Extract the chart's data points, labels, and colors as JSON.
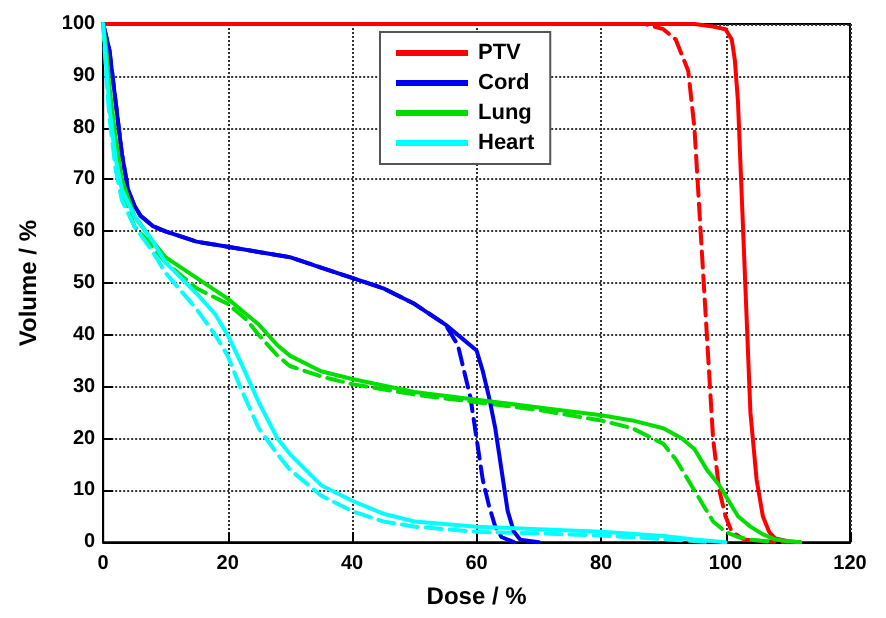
{
  "chart_data": {
    "type": "line",
    "xlabel": "Dose / %",
    "ylabel": "Volume / %",
    "xlim": [
      0,
      120
    ],
    "xticks": [
      0,
      20,
      40,
      60,
      80,
      100,
      120
    ],
    "ylim": [
      0,
      100
    ],
    "yticks": [
      0,
      10,
      20,
      30,
      40,
      50,
      60,
      70,
      80,
      90,
      100
    ],
    "grid": true,
    "legend": "top",
    "marker": "none",
    "series": [
      {
        "name": "PTV",
        "color": "#ff0000",
        "line_style": "solid",
        "x": [
          0,
          85,
          95,
          98,
          100,
          101,
          101.5,
          102,
          102.5,
          103,
          103.5,
          104,
          105,
          106,
          107,
          108,
          110,
          112
        ],
        "values": [
          100,
          100,
          100,
          99.5,
          99,
          97,
          93,
          85,
          70,
          55,
          40,
          25,
          12,
          5,
          2,
          0.7,
          0.2,
          0
        ]
      },
      {
        "name": "Cord",
        "color": "#0000ee",
        "line_style": "solid",
        "x": [
          0,
          1,
          2,
          3,
          4,
          5,
          6,
          8,
          10,
          15,
          20,
          25,
          30,
          35,
          40,
          45,
          50,
          55,
          58,
          60,
          61,
          62,
          63,
          64,
          65,
          66,
          67,
          70
        ],
        "values": [
          100,
          95,
          85,
          75,
          68,
          65,
          63,
          61,
          60,
          58,
          57,
          56,
          55,
          53,
          51,
          49,
          46,
          42,
          39,
          37,
          33,
          28,
          22,
          14,
          6,
          2,
          0.5,
          0
        ]
      },
      {
        "name": "Lung",
        "color": "#00dd00",
        "line_style": "solid",
        "x": [
          0,
          0.5,
          1,
          2,
          3,
          5,
          8,
          10,
          15,
          20,
          23,
          25,
          28,
          30,
          35,
          40,
          50,
          60,
          70,
          80,
          85,
          90,
          93,
          95,
          97,
          99,
          100,
          101,
          102,
          104,
          106,
          108,
          110,
          112
        ],
        "values": [
          100,
          95,
          88,
          78,
          70,
          63,
          58,
          55,
          51,
          47,
          44,
          42,
          38,
          36,
          33,
          31.5,
          29,
          27.5,
          26,
          24.5,
          23.5,
          22,
          20,
          18,
          14,
          11,
          9,
          7,
          5,
          3,
          1.5,
          0.5,
          0.2,
          0
        ]
      },
      {
        "name": "Heart",
        "color": "#00ffff",
        "line_style": "solid",
        "x": [
          0,
          0.5,
          1,
          2,
          3,
          5,
          8,
          10,
          15,
          18,
          20,
          22,
          25,
          28,
          30,
          35,
          40,
          45,
          50,
          60,
          70,
          80,
          90,
          95,
          100
        ],
        "values": [
          100,
          92,
          84,
          74,
          68,
          63,
          58,
          54,
          48,
          44,
          40,
          35,
          27,
          20,
          17,
          11,
          8,
          5.5,
          4,
          3,
          2.5,
          2,
          1.2,
          0.5,
          0
        ]
      },
      {
        "color": "#ff0000",
        "line_style": "dashed",
        "x": [
          0,
          87,
          90,
          92,
          94,
          95,
          96,
          97,
          98,
          99,
          100,
          101,
          103,
          106,
          110
        ],
        "values": [
          100,
          100,
          99,
          97,
          91,
          80,
          60,
          40,
          20,
          10,
          5,
          2,
          0.5,
          0.2,
          0
        ]
      },
      {
        "color": "#0000ee",
        "line_style": "dashed",
        "x": [
          0,
          1,
          2,
          3,
          4,
          5,
          6,
          8,
          10,
          15,
          20,
          25,
          30,
          35,
          40,
          45,
          50,
          55,
          57,
          58,
          59,
          60,
          61,
          62,
          63,
          64,
          66
        ],
        "values": [
          100,
          95,
          85,
          75,
          68,
          65,
          63,
          61,
          60,
          58,
          57,
          56,
          55,
          53,
          51,
          49,
          46,
          42,
          38,
          33,
          28,
          20,
          12,
          7,
          3,
          1,
          0
        ]
      },
      {
        "color": "#00dd00",
        "line_style": "dashed",
        "x": [
          0,
          0.5,
          1,
          2,
          3,
          5,
          8,
          10,
          15,
          20,
          23,
          25,
          28,
          30,
          35,
          40,
          50,
          60,
          70,
          80,
          85,
          90,
          92,
          94,
          96,
          98,
          100,
          102,
          104,
          108
        ],
        "values": [
          100,
          93,
          85,
          75,
          68,
          61,
          57,
          54,
          49,
          46,
          43,
          40,
          36,
          34,
          32,
          30.5,
          28.5,
          27,
          25.5,
          23.5,
          22,
          19,
          16,
          12,
          8,
          4,
          2,
          1,
          0.5,
          0
        ]
      },
      {
        "color": "#00ffff",
        "line_style": "dashed",
        "x": [
          0,
          0.5,
          1,
          2,
          3,
          5,
          8,
          10,
          15,
          18,
          20,
          22,
          25,
          28,
          30,
          35,
          40,
          45,
          50,
          60,
          70,
          80,
          90,
          98
        ],
        "values": [
          100,
          90,
          82,
          72,
          66,
          61,
          56,
          52,
          45,
          40,
          36,
          30,
          22,
          17,
          14,
          9,
          6,
          4,
          3,
          2,
          1.7,
          1.3,
          0.6,
          0
        ]
      }
    ]
  }
}
